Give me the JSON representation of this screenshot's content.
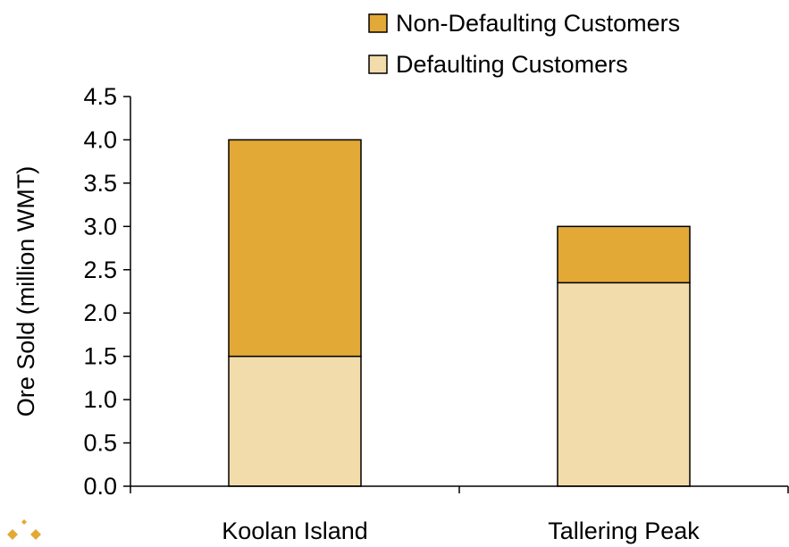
{
  "chart_data": {
    "type": "bar",
    "stacked": true,
    "categories": [
      "Koolan Island",
      "Tallering Peak"
    ],
    "series": [
      {
        "name": "Defaulting Customers",
        "values": [
          1.5,
          2.35
        ],
        "color": "#f3dcab"
      },
      {
        "name": "Non-Defaulting Customers",
        "values": [
          2.5,
          0.65
        ],
        "color": "#e2a937"
      }
    ],
    "ylabel": "Ore Sold (million WMT)",
    "xlabel": "",
    "ylim": [
      0,
      4.5
    ],
    "yticks": [
      0.0,
      0.5,
      1.0,
      1.5,
      2.0,
      2.5,
      3.0,
      3.5,
      4.0,
      4.5
    ],
    "ytick_labels": [
      "0.0",
      "0.5",
      "1.0",
      "1.5",
      "2.0",
      "2.5",
      "3.0",
      "3.5",
      "4.0",
      "4.5"
    ],
    "grid": false,
    "legend": {
      "placement": "top-right",
      "order": [
        "Non-Defaulting Customers",
        "Defaulting Customers"
      ]
    },
    "logo_color": "#e2a937"
  }
}
